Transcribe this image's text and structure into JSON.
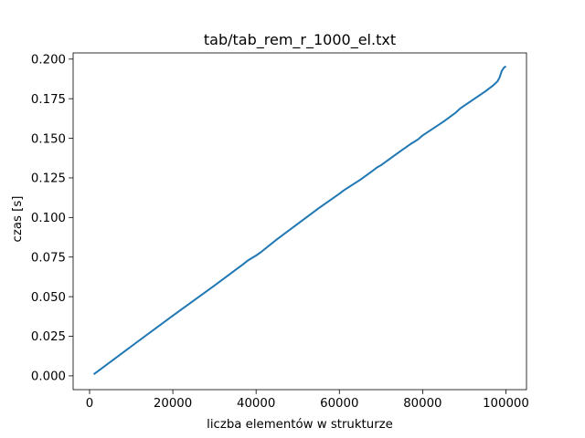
{
  "chart_data": {
    "type": "line",
    "title": "tab/tab_rem_r_1000_el.txt",
    "xlabel": "liczba elementów w strukturze",
    "ylabel": "czas [s]",
    "xlim": [
      -3950,
      104950
    ],
    "ylim": [
      -0.0087,
      0.2039
    ],
    "grid": false,
    "x_ticks": [
      0,
      20000,
      40000,
      60000,
      80000,
      100000
    ],
    "x_tick_labels": [
      "0",
      "20000",
      "40000",
      "60000",
      "80000",
      "100000"
    ],
    "y_ticks": [
      0.0,
      0.025,
      0.05,
      0.075,
      0.1,
      0.125,
      0.15,
      0.175,
      0.2
    ],
    "y_tick_labels": [
      "0.000",
      "0.025",
      "0.050",
      "0.075",
      "0.100",
      "0.125",
      "0.150",
      "0.175",
      "0.200"
    ],
    "series": [
      {
        "color": "#1f77b4",
        "x": [
          1000,
          10000,
          20000,
          25000,
          30000,
          35000,
          37000,
          38000,
          39000,
          40000,
          41000,
          45000,
          50000,
          55000,
          60000,
          61000,
          65000,
          68000,
          69000,
          70000,
          75000,
          76000,
          77000,
          78000,
          79000,
          80000,
          85000,
          88000,
          89000,
          90000,
          95000,
          97000,
          98000,
          98500,
          99000,
          99500,
          100000
        ],
        "y": [
          0.001,
          0.0186,
          0.038,
          0.0475,
          0.057,
          0.0668,
          0.0707,
          0.0728,
          0.0744,
          0.076,
          0.0778,
          0.0862,
          0.096,
          0.1058,
          0.115,
          0.117,
          0.1238,
          0.1295,
          0.1315,
          0.133,
          0.1425,
          0.1443,
          0.1462,
          0.1478,
          0.1495,
          0.1518,
          0.1605,
          0.1663,
          0.1688,
          0.1706,
          0.1795,
          0.1835,
          0.186,
          0.1885,
          0.1925,
          0.1945,
          0.1955
        ]
      }
    ]
  }
}
